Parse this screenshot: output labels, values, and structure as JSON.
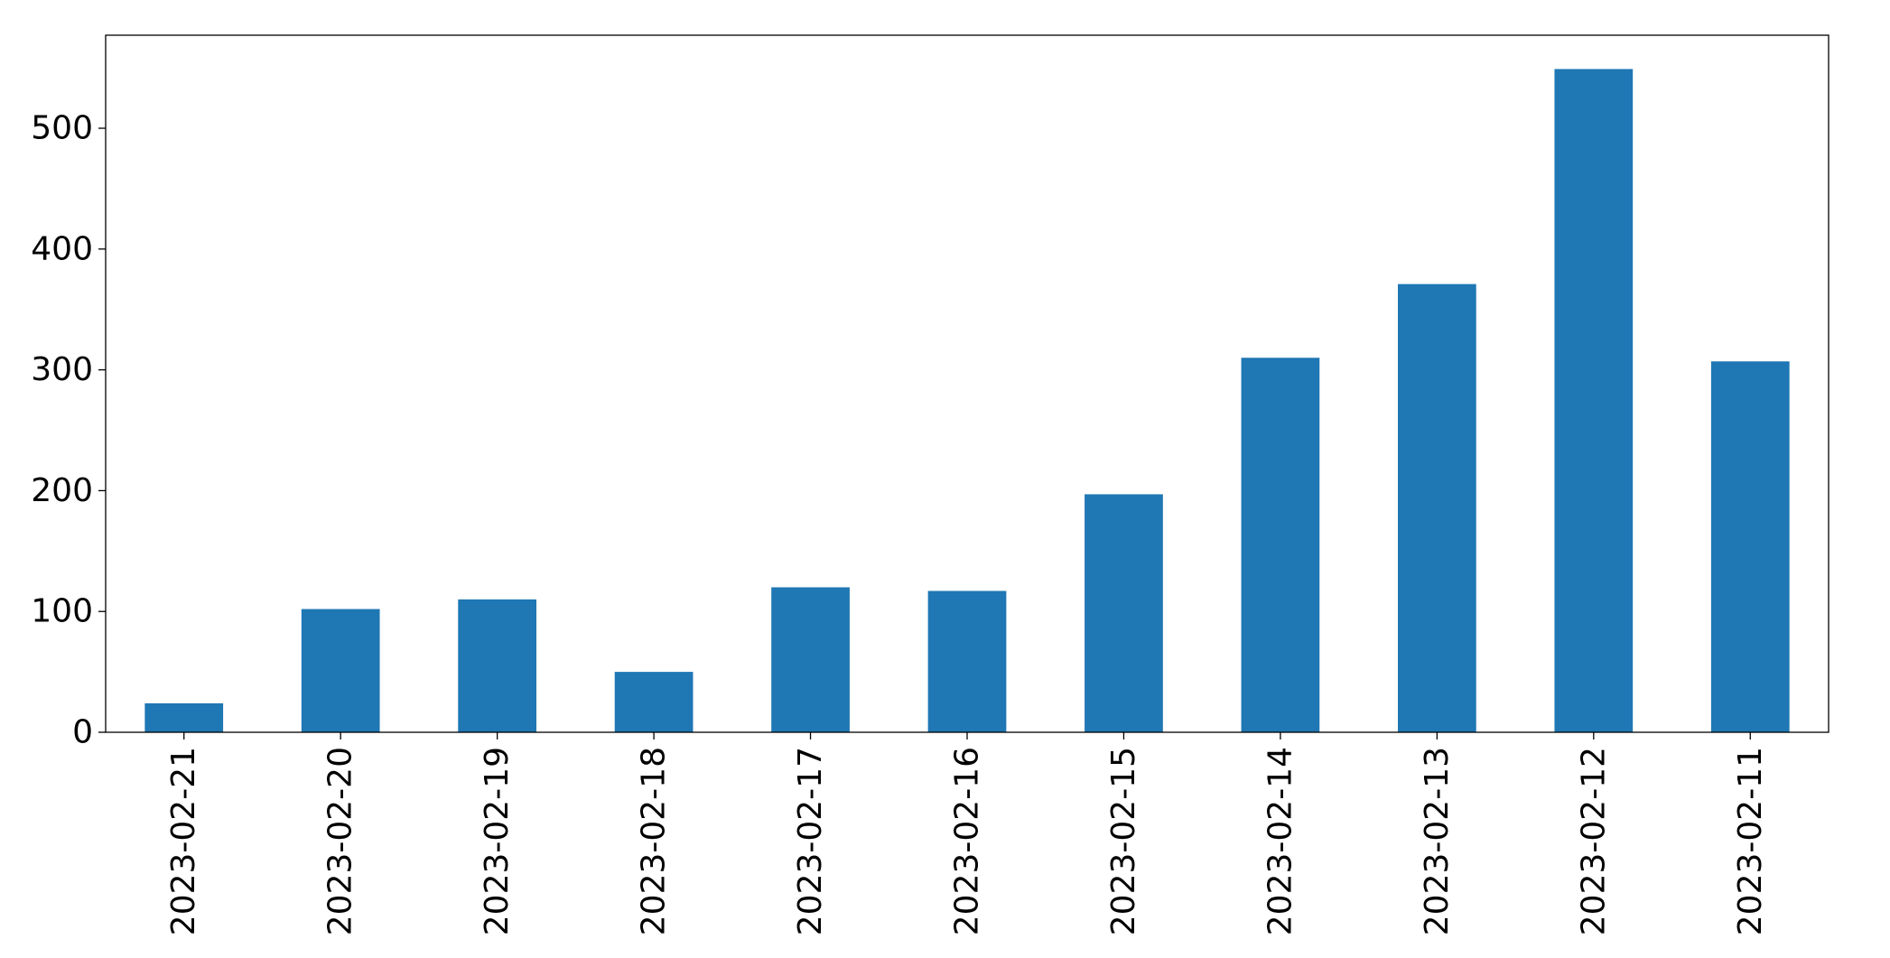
{
  "chart_data": {
    "type": "bar",
    "title": "",
    "xlabel": "",
    "ylabel": "",
    "categories": [
      "2023-02-21",
      "2023-02-20",
      "2023-02-19",
      "2023-02-18",
      "2023-02-17",
      "2023-02-16",
      "2023-02-15",
      "2023-02-14",
      "2023-02-13",
      "2023-02-12",
      "2023-02-11"
    ],
    "values": [
      24,
      102,
      110,
      50,
      120,
      117,
      197,
      310,
      371,
      549,
      307
    ],
    "ylim": [
      0,
      577
    ],
    "yticks": [
      0,
      100,
      200,
      300,
      400,
      500
    ],
    "grid": false,
    "legend": "none",
    "bar_color": "#1f77b4"
  }
}
